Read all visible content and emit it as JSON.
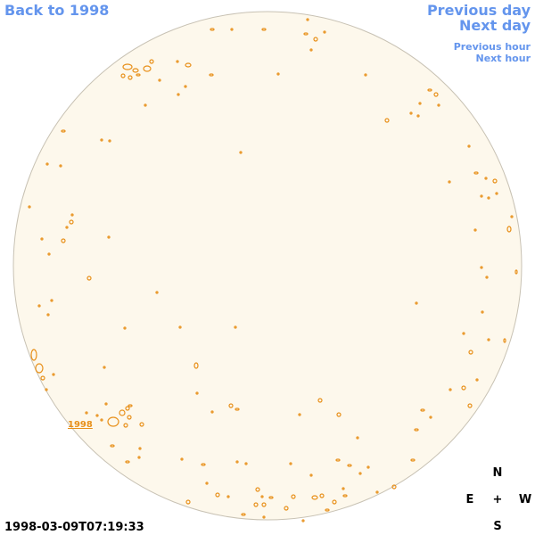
{
  "nav": {
    "back": "Back to 1998",
    "previous_day": "Previous day",
    "next_day": "Next day",
    "previous_hour": "Previous hour",
    "next_hour": "Next hour"
  },
  "region_label": "1998",
  "timestamp": "1998-03-09T07:19:33",
  "compass": {
    "north": "N",
    "east": "E",
    "center": "+",
    "west": "W",
    "south": "S"
  }
}
